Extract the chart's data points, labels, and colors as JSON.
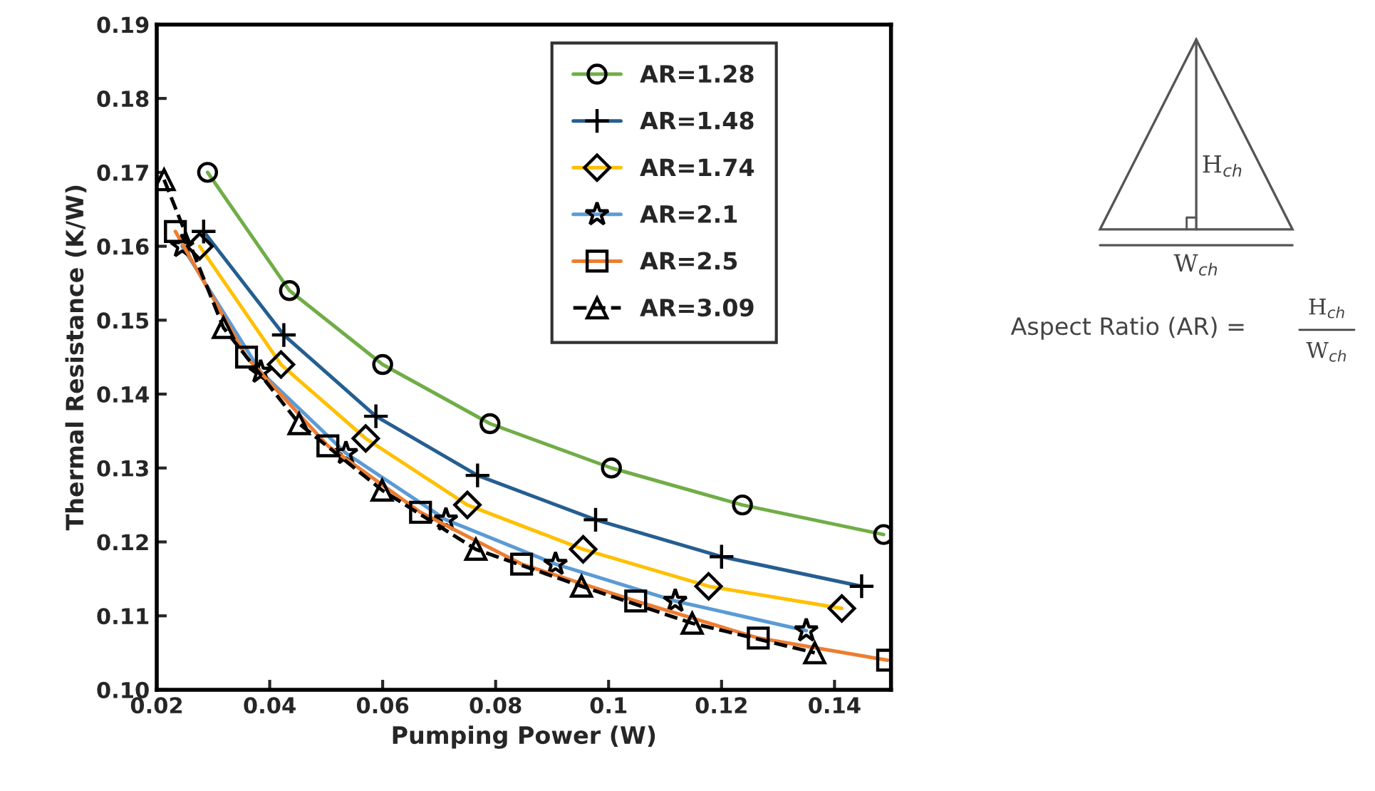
{
  "chart_data": {
    "type": "line",
    "xlabel": "Pumping Power (W)",
    "ylabel": "Thermal Resistance (K/W)",
    "xlim": [
      0.02,
      0.15
    ],
    "xticks": [
      0.02,
      0.04,
      0.06,
      0.08,
      0.1,
      0.12,
      0.14
    ],
    "ylim": [
      0.1,
      0.19
    ],
    "yticks": [
      {
        "value": 0.1,
        "label": "0.10"
      },
      0.11,
      0.12,
      0.13,
      0.14,
      0.15,
      0.16,
      0.17,
      0.18,
      0.19
    ],
    "grid": false,
    "legend": "top right",
    "annotations": [
      "H$_{ch}$",
      "W$_{ch}$",
      "Aspect Ratio (AR) =",
      "H$_{ch}$",
      "W$_{ch}$"
    ],
    "series": [
      {
        "name": "AR=1.28",
        "color": "#70ad47",
        "marker": "circle",
        "line_style": "solid",
        "x": [
          0.029,
          0.0435,
          0.06,
          0.079,
          0.1005,
          0.1237,
          0.1487
        ],
        "values": [
          0.17,
          0.154,
          0.144,
          0.136,
          0.13,
          0.125,
          0.121
        ]
      },
      {
        "name": "AR=1.48",
        "color": "#255e91",
        "marker": "cross",
        "line_style": "solid",
        "x": [
          0.0283,
          0.0425,
          0.0588,
          0.0768,
          0.0977,
          0.12,
          0.1448
        ],
        "values": [
          0.162,
          0.148,
          0.137,
          0.129,
          0.123,
          0.118,
          0.114
        ]
      },
      {
        "name": "AR=1.74",
        "color": "#ffc000",
        "marker": "diamond",
        "line_style": "solid",
        "x": [
          0.0276,
          0.042,
          0.057,
          0.075,
          0.0955,
          0.1177,
          0.1413
        ],
        "values": [
          0.16,
          0.144,
          0.134,
          0.125,
          0.119,
          0.114,
          0.111
        ]
      },
      {
        "name": "AR=2.1",
        "color": "#5b9bd5",
        "marker": "star",
        "line_style": "solid",
        "x": [
          0.0245,
          0.0384,
          0.0535,
          0.0712,
          0.0906,
          0.1118,
          0.135
        ],
        "values": [
          0.16,
          0.143,
          0.132,
          0.123,
          0.117,
          0.112,
          0.108
        ]
      },
      {
        "name": "AR=2.5",
        "color": "#ed7d31",
        "marker": "square",
        "line_style": "solid",
        "x": [
          0.0233,
          0.0359,
          0.0503,
          0.0667,
          0.0846,
          0.1048,
          0.1265,
          0.1494
        ],
        "values": [
          0.162,
          0.145,
          0.133,
          0.124,
          0.117,
          0.112,
          0.107,
          0.104
        ]
      },
      {
        "name": "AR=3.09",
        "color": "#000000",
        "marker": "triangle",
        "line_style": "dashed",
        "x": [
          0.0213,
          0.0318,
          0.0452,
          0.0599,
          0.0765,
          0.0952,
          0.1148,
          0.1365
        ],
        "values": [
          0.169,
          0.149,
          0.136,
          0.127,
          0.119,
          0.114,
          0.109,
          0.105
        ]
      }
    ]
  }
}
